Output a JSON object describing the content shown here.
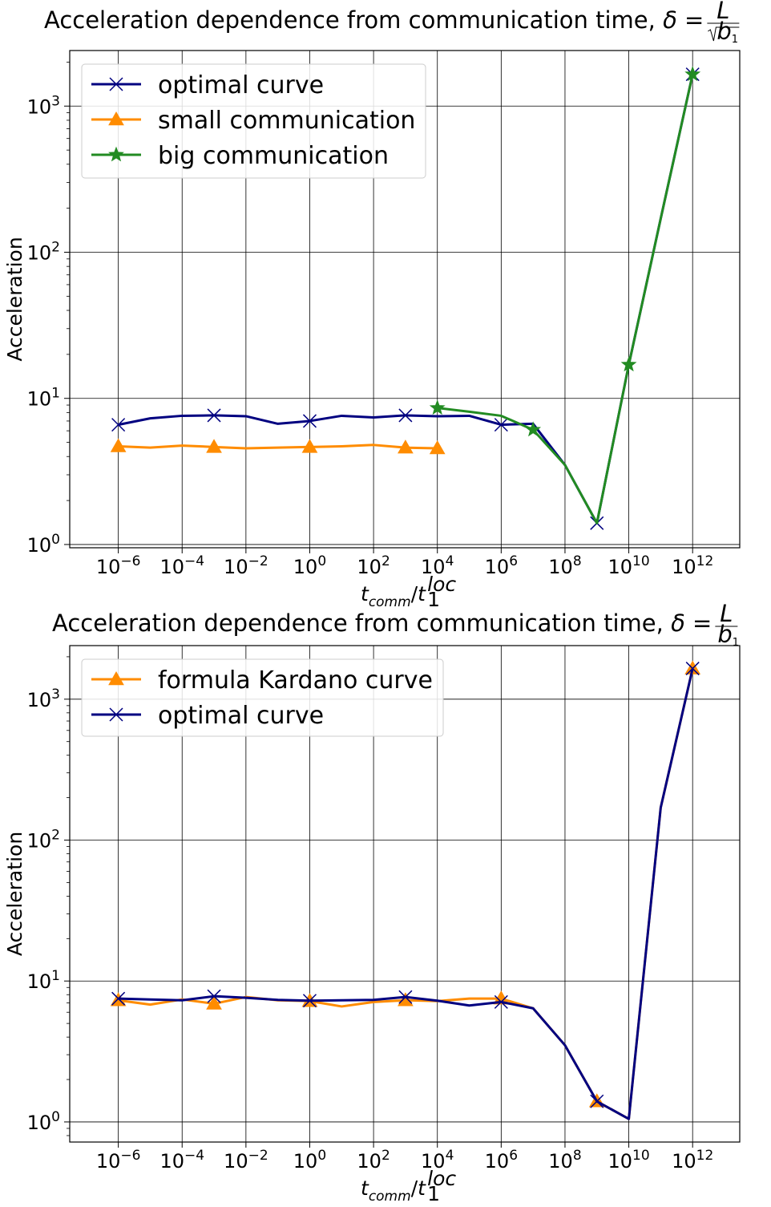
{
  "chart_data": [
    {
      "type": "line",
      "title": "Acceleration dependence from communication time, ",
      "title_math": {
        "symbol": "δ",
        "numerator": "L",
        "denominator": "b",
        "denominator_sub": "1",
        "sqrt": true
      },
      "xlabel": {
        "base": "t",
        "sub": "comm",
        "sep": "/",
        "base2": "t",
        "sub2": "1",
        "sup2": "loc"
      },
      "ylabel": "Acceleration",
      "xscale": "log",
      "yscale": "log",
      "xlim": [
        3e-08,
        30000000000000.0
      ],
      "ylim": [
        0.95,
        2400
      ],
      "xticks": [
        {
          "exp": "−6",
          "value": 1e-06
        },
        {
          "exp": "−4",
          "value": 0.0001
        },
        {
          "exp": "−2",
          "value": 0.01
        },
        {
          "exp": "0",
          "value": 1
        },
        {
          "exp": "2",
          "value": 100.0
        },
        {
          "exp": "4",
          "value": 10000.0
        },
        {
          "exp": "6",
          "value": 1000000.0
        },
        {
          "exp": "8",
          "value": 100000000.0
        },
        {
          "exp": "10",
          "value": 10000000000.0
        },
        {
          "exp": "12",
          "value": 1000000000000.0
        }
      ],
      "yticks": [
        {
          "exp": "0",
          "value": 1
        },
        {
          "exp": "1",
          "value": 10
        },
        {
          "exp": "2",
          "value": 100
        },
        {
          "exp": "3",
          "value": 1000
        }
      ],
      "grid": true,
      "legend_position": "upper-left",
      "series": [
        {
          "name": "optimal curve",
          "color": "#000080",
          "marker": "x",
          "marker_every": 3,
          "x": [
            1e-06,
            1e-05,
            0.0001,
            0.001,
            0.01,
            0.1,
            1,
            10.0,
            100.0,
            1000.0,
            10000.0,
            100000.0,
            1000000.0,
            10000000.0,
            100000000.0,
            1000000000.0,
            10000000000.0,
            100000000000.0,
            1000000000000.0
          ],
          "y": [
            6.6,
            7.3,
            7.6,
            7.65,
            7.55,
            6.7,
            7.0,
            7.6,
            7.4,
            7.65,
            7.55,
            7.6,
            6.6,
            6.7,
            3.5,
            1.4,
            17,
            170,
            1650
          ]
        },
        {
          "name": "small communication",
          "color": "#ff8c00",
          "marker": "triangle",
          "marker_every": 3,
          "x": [
            1e-06,
            1e-05,
            0.0001,
            0.001,
            0.01,
            0.1,
            1,
            10.0,
            100.0,
            1000.0,
            10000.0
          ],
          "y": [
            4.7,
            4.6,
            4.75,
            4.65,
            4.55,
            4.6,
            4.65,
            4.7,
            4.8,
            4.6,
            4.55
          ]
        },
        {
          "name": "big communication",
          "color": "#228b22",
          "marker": "star",
          "marker_every": 3,
          "x": [
            10000.0,
            100000.0,
            1000000.0,
            10000000.0,
            100000000.0,
            1000000000.0,
            10000000000.0,
            100000000000.0,
            1000000000000.0
          ],
          "y": [
            8.6,
            8.1,
            7.6,
            6.1,
            3.5,
            1.4,
            17,
            170,
            1650
          ]
        }
      ]
    },
    {
      "type": "line",
      "title": "Acceleration dependence from communication time, ",
      "title_math": {
        "symbol": "δ",
        "numerator": "L",
        "denominator": "b",
        "denominator_sub": "1",
        "sqrt": false
      },
      "xlabel": {
        "base": "t",
        "sub": "comm",
        "sep": "/",
        "base2": "t",
        "sub2": "1",
        "sup2": "loc"
      },
      "ylabel": "Acceleration",
      "xscale": "log",
      "yscale": "log",
      "xlim": [
        3e-08,
        30000000000000.0
      ],
      "ylim": [
        0.72,
        2400
      ],
      "xticks": [
        {
          "exp": "−6",
          "value": 1e-06
        },
        {
          "exp": "−4",
          "value": 0.0001
        },
        {
          "exp": "−2",
          "value": 0.01
        },
        {
          "exp": "0",
          "value": 1
        },
        {
          "exp": "2",
          "value": 100.0
        },
        {
          "exp": "4",
          "value": 10000.0
        },
        {
          "exp": "6",
          "value": 1000000.0
        },
        {
          "exp": "8",
          "value": 100000000.0
        },
        {
          "exp": "10",
          "value": 10000000000.0
        },
        {
          "exp": "12",
          "value": 1000000000000.0
        }
      ],
      "yticks": [
        {
          "exp": "0",
          "value": 1
        },
        {
          "exp": "1",
          "value": 10
        },
        {
          "exp": "2",
          "value": 100
        },
        {
          "exp": "3",
          "value": 1000
        }
      ],
      "grid": true,
      "legend_position": "upper-left",
      "series": [
        {
          "name": "formula Kardano curve",
          "color": "#ff8c00",
          "marker": "triangle",
          "marker_every": 3,
          "x": [
            1e-06,
            1e-05,
            0.0001,
            0.001,
            0.01,
            0.1,
            1,
            10.0,
            100.0,
            1000.0,
            10000.0,
            100000.0,
            1000000.0,
            10000000.0,
            100000000.0,
            1000000000.0,
            10000000000.0,
            100000000000.0,
            1000000000000.0
          ],
          "y": [
            7.3,
            6.8,
            7.4,
            6.9,
            7.7,
            7.3,
            7.2,
            6.6,
            7.1,
            7.3,
            7.2,
            7.5,
            7.5,
            6.4,
            3.5,
            1.4,
            1.05,
            170,
            1650
          ]
        },
        {
          "name": "optimal curve",
          "color": "#000080",
          "marker": "x",
          "marker_every": 3,
          "x": [
            1e-06,
            1e-05,
            0.0001,
            0.001,
            0.01,
            0.1,
            1,
            10.0,
            100.0,
            1000.0,
            10000.0,
            100000.0,
            1000000.0,
            10000000.0,
            100000000.0,
            1000000000.0,
            10000000000.0,
            100000000000.0,
            1000000000000.0
          ],
          "y": [
            7.5,
            7.4,
            7.3,
            7.8,
            7.6,
            7.35,
            7.25,
            7.3,
            7.35,
            7.7,
            7.25,
            6.7,
            7.1,
            6.4,
            3.5,
            1.4,
            1.05,
            170,
            1650
          ]
        }
      ]
    }
  ]
}
